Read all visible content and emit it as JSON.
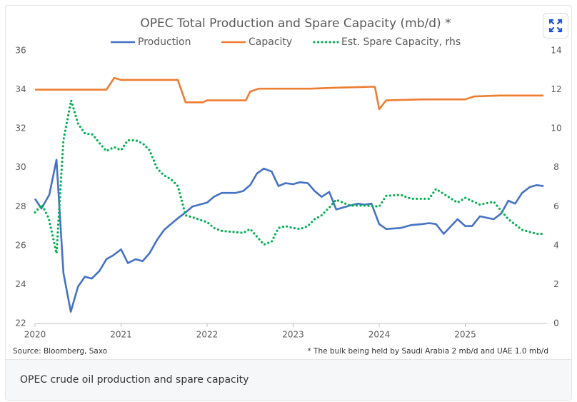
{
  "chart_data": {
    "type": "line",
    "title": "OPEC Total Production and Spare Capacity (mb/d) *",
    "xlim": [
      2020,
      2025.95
    ],
    "xticks": [
      2020,
      2021,
      2022,
      2023,
      2024,
      2025
    ],
    "ylim": [
      22,
      36
    ],
    "yticks": [
      22,
      24,
      26,
      28,
      30,
      32,
      34,
      36
    ],
    "y2lim": [
      0,
      14
    ],
    "y2ticks": [
      0,
      2,
      4,
      6,
      8,
      10,
      12,
      14
    ],
    "grid": false,
    "legend": "top",
    "source": "Source: Bloomberg, Saxo",
    "footnote": "* The bulk being held by Saudi Arabia 2 mb/d and UAE 1.0 mb/d",
    "series": [
      {
        "name": "Production",
        "color": "#4472c4",
        "style": "solid",
        "x": [
          2020.0,
          2020.075,
          2020.166,
          2020.25,
          2020.33,
          2020.416,
          2020.5,
          2020.58,
          2020.66,
          2020.75,
          2020.83,
          2020.91,
          2021.0,
          2021.08,
          2021.17,
          2021.25,
          2021.33,
          2021.42,
          2021.5,
          2021.58,
          2021.66,
          2021.75,
          2021.83,
          2022.0,
          2022.08,
          2022.17,
          2022.33,
          2022.42,
          2022.5,
          2022.58,
          2022.66,
          2022.75,
          2022.83,
          2022.91,
          2023.0,
          2023.08,
          2023.17,
          2023.25,
          2023.33,
          2023.42,
          2023.5,
          2023.66,
          2023.75,
          2023.83,
          2023.91,
          2024.0,
          2024.08,
          2024.25,
          2024.37,
          2024.5,
          2024.58,
          2024.66,
          2024.75,
          2024.91,
          2025.0,
          2025.08,
          2025.17,
          2025.33,
          2025.42,
          2025.5,
          2025.58,
          2025.66,
          2025.75,
          2025.83,
          2025.91
        ],
        "values": [
          28.4,
          27.9,
          28.6,
          30.4,
          24.6,
          22.6,
          23.9,
          24.4,
          24.3,
          24.7,
          25.3,
          25.5,
          25.8,
          25.1,
          25.3,
          25.2,
          25.6,
          26.3,
          26.8,
          27.1,
          27.4,
          27.7,
          28.0,
          28.2,
          28.5,
          28.7,
          28.7,
          28.8,
          29.1,
          29.7,
          29.95,
          29.8,
          29.05,
          29.2,
          29.15,
          29.25,
          29.2,
          28.8,
          28.5,
          28.75,
          27.85,
          28.05,
          28.15,
          28.1,
          28.15,
          27.1,
          26.85,
          26.9,
          27.05,
          27.1,
          27.15,
          27.1,
          26.6,
          27.35,
          27.0,
          27.0,
          27.5,
          27.35,
          27.65,
          28.3,
          28.15,
          28.7,
          29.0,
          29.1,
          29.05
        ]
      },
      {
        "name": "Capacity",
        "color": "#ed7d31",
        "style": "solid",
        "x": [
          2020.0,
          2020.83,
          2020.92,
          2021.0,
          2021.66,
          2021.75,
          2021.95,
          2022.0,
          2022.45,
          2022.5,
          2022.6,
          2023.2,
          2023.5,
          2023.9,
          2023.95,
          2024.0,
          2024.08,
          2024.5,
          2025.0,
          2025.1,
          2025.4,
          2025.91
        ],
        "values": [
          34.0,
          34.0,
          34.6,
          34.5,
          34.5,
          33.35,
          33.35,
          33.45,
          33.45,
          33.9,
          34.05,
          34.05,
          34.1,
          34.15,
          34.15,
          33.0,
          33.45,
          33.5,
          33.5,
          33.65,
          33.7,
          33.7
        ]
      },
      {
        "name": "Est. Spare Capacity, rhs",
        "color": "#00b050",
        "style": "dotted",
        "axis": "y2",
        "x": [
          2020.0,
          2020.08,
          2020.16,
          2020.25,
          2020.33,
          2020.42,
          2020.5,
          2020.58,
          2020.67,
          2020.75,
          2020.83,
          2020.92,
          2021.0,
          2021.08,
          2021.17,
          2021.25,
          2021.33,
          2021.42,
          2021.5,
          2021.58,
          2021.66,
          2021.75,
          2021.83,
          2022.0,
          2022.08,
          2022.17,
          2022.42,
          2022.5,
          2022.58,
          2022.66,
          2022.75,
          2022.83,
          2022.91,
          2023.0,
          2023.08,
          2023.17,
          2023.25,
          2023.33,
          2023.42,
          2023.5,
          2023.66,
          2023.83,
          2024.0,
          2024.08,
          2024.25,
          2024.37,
          2024.58,
          2024.66,
          2024.91,
          2025.0,
          2025.17,
          2025.33,
          2025.5,
          2025.66,
          2025.83,
          2025.91
        ],
        "values": [
          5.7,
          6.1,
          5.4,
          3.6,
          9.4,
          11.45,
          10.25,
          9.75,
          9.7,
          9.25,
          8.85,
          9.05,
          8.9,
          9.4,
          9.4,
          9.25,
          8.9,
          7.95,
          7.6,
          7.4,
          7.05,
          5.55,
          5.45,
          5.2,
          4.9,
          4.75,
          4.65,
          4.85,
          4.45,
          4.05,
          4.2,
          4.9,
          5.0,
          4.9,
          4.85,
          5.0,
          5.35,
          5.55,
          5.95,
          6.35,
          6.05,
          6.05,
          6.0,
          6.55,
          6.6,
          6.4,
          6.4,
          6.9,
          6.2,
          6.45,
          6.1,
          6.25,
          5.35,
          4.8,
          4.6,
          4.6
        ]
      }
    ]
  },
  "caption": "OPEC crude oil production and spare capacity"
}
